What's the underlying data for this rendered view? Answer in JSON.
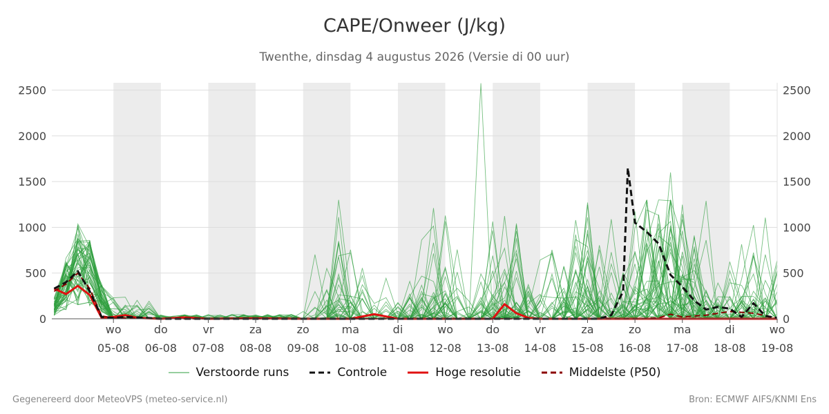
{
  "title": "CAPE/Onweer (J/kg)",
  "subtitle": "Twenthe, dinsdag  4 augustus 2026 (Versie di 00 uur)",
  "footer": {
    "left": "Gegenereerd door MeteoVPS (meteo-service.nl)",
    "right": "Bron: ECMWF AIFS/KNMI Ens"
  },
  "colors": {
    "members": "#2e9e3e",
    "control": "#111111",
    "hires": "#e01010",
    "median": "#8b0000",
    "shade": "#ececec",
    "grid": "#dddddd"
  },
  "legend": [
    {
      "key": "members",
      "label": "Verstoorde runs",
      "style": "thin"
    },
    {
      "key": "control",
      "label": "Controle",
      "style": "dashed"
    },
    {
      "key": "hires",
      "label": "Hoge resolutie",
      "style": "solid"
    },
    {
      "key": "median",
      "label": "Middelste (P50)",
      "style": "dashed"
    }
  ],
  "chart_data": {
    "type": "line",
    "x_unit": "days since 2026-08-04 00 UTC",
    "xlim": [
      -0.3,
      15.0
    ],
    "ylim": [
      0,
      2580
    ],
    "yticks": [
      0,
      500,
      1000,
      1500,
      2000,
      2500
    ],
    "grid": true,
    "legend_position": "bottom",
    "shaded_days": [
      [
        1,
        2
      ],
      [
        3,
        4
      ],
      [
        5,
        6
      ],
      [
        7,
        8
      ],
      [
        9,
        10
      ],
      [
        11,
        12
      ],
      [
        13,
        14
      ]
    ],
    "x_ticks": [
      {
        "x": 1,
        "day": "wo",
        "date": "05-08"
      },
      {
        "x": 2,
        "day": "do",
        "date": "06-08"
      },
      {
        "x": 3,
        "day": "vr",
        "date": "07-08"
      },
      {
        "x": 4,
        "day": "za",
        "date": "08-08"
      },
      {
        "x": 5,
        "day": "zo",
        "date": "09-08"
      },
      {
        "x": 6,
        "day": "ma",
        "date": "10-08"
      },
      {
        "x": 7,
        "day": "di",
        "date": "11-08"
      },
      {
        "x": 8,
        "day": "wo",
        "date": "12-08"
      },
      {
        "x": 9,
        "day": "do",
        "date": "13-08"
      },
      {
        "x": 10,
        "day": "vr",
        "date": "14-08"
      },
      {
        "x": 11,
        "day": "za",
        "date": "15-08"
      },
      {
        "x": 12,
        "day": "zo",
        "date": "16-08"
      },
      {
        "x": 13,
        "day": "ma",
        "date": "17-08"
      },
      {
        "x": 14,
        "day": "di",
        "date": "18-08"
      },
      {
        "x": 15,
        "day": "wo",
        "date": "19-08"
      }
    ],
    "series": [
      {
        "name": "Controle",
        "key": "control",
        "x": [
          -0.25,
          0,
          0.25,
          0.5,
          0.75,
          1,
          1.25,
          1.5,
          2,
          3,
          4,
          5,
          6,
          7,
          8,
          9,
          10,
          10.5,
          11,
          11.25,
          11.5,
          11.75,
          11.85,
          12,
          12.25,
          12.5,
          12.75,
          13,
          13.25,
          13.5,
          13.75,
          14,
          14.25,
          14.5,
          14.75,
          15
        ],
        "y": [
          330,
          400,
          520,
          300,
          20,
          10,
          20,
          15,
          0,
          0,
          0,
          0,
          0,
          0,
          0,
          0,
          0,
          0,
          0,
          0,
          40,
          300,
          1650,
          1050,
          950,
          820,
          480,
          350,
          200,
          100,
          130,
          110,
          20,
          170,
          30,
          10
        ]
      },
      {
        "name": "Hoge resolutie",
        "key": "hires",
        "x": [
          -0.25,
          0,
          0.25,
          0.5,
          0.75,
          1,
          1.25,
          1.5,
          2,
          2.5,
          3,
          4,
          5,
          6,
          6.5,
          7,
          8,
          9,
          9.25,
          9.5,
          9.75,
          10,
          11,
          12,
          13,
          14,
          15
        ],
        "y": [
          330,
          270,
          360,
          260,
          10,
          20,
          40,
          10,
          0,
          15,
          0,
          5,
          0,
          0,
          50,
          0,
          0,
          0,
          160,
          60,
          10,
          0,
          0,
          0,
          0,
          0,
          0
        ]
      },
      {
        "name": "Middelste (P50)",
        "key": "median",
        "x": [
          -0.25,
          0,
          0.25,
          0.5,
          0.75,
          1,
          1.5,
          2,
          3,
          4,
          5,
          6,
          7,
          8,
          9,
          10,
          11,
          11.5,
          12,
          12.5,
          12.75,
          13,
          13.5,
          14,
          14.5,
          15
        ],
        "y": [
          300,
          380,
          500,
          330,
          30,
          10,
          10,
          0,
          0,
          0,
          0,
          0,
          0,
          0,
          0,
          0,
          0,
          0,
          0,
          10,
          50,
          20,
          40,
          80,
          60,
          10
        ]
      }
    ],
    "members_note": "Verstoorde runs: ensemble of ~50 thin green lines, values 0–2580 J/kg"
  }
}
